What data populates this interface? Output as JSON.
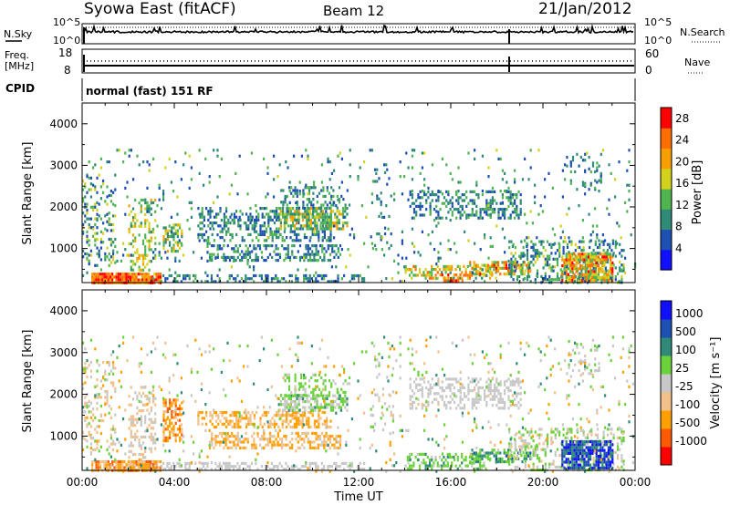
{
  "header": {
    "title": "Syowa East (fitACF)",
    "beam": "Beam 12",
    "date": "21/Jan/2012"
  },
  "noise_panel": {
    "left_label": "N.Sky",
    "right_label": "N.Search",
    "left_ticks": [
      "10^5",
      "10^0"
    ],
    "right_ticks": [
      "10^5",
      "10^0"
    ]
  },
  "freq_panel": {
    "left_label_1": "Freq.",
    "left_label_2": "[MHz]",
    "right_label": "Nave",
    "left_ticks": [
      "18",
      "8"
    ],
    "right_ticks": [
      "60",
      "0"
    ]
  },
  "cpid": {
    "label": "CPID",
    "value": "normal (fast) 151 RF"
  },
  "chart_data": [
    {
      "type": "heatmap",
      "name": "power",
      "ylabel": "Slant Range [km]",
      "ylim": [
        180,
        4500
      ],
      "yticks": [
        "1000",
        "2000",
        "3000",
        "4000"
      ],
      "xlim": [
        "00:00",
        "24:00"
      ],
      "colorbar_label": "Power [dB]",
      "colorbar_ticks": [
        "4",
        "8",
        "12",
        "16",
        "20",
        "24",
        "28"
      ],
      "colorbar_range": [
        0,
        30
      ],
      "colors": [
        "#1010ff",
        "#1e50b4",
        "#2f8a78",
        "#50b450",
        "#d2d21e",
        "#f5a000",
        "#ff6e00",
        "#ff0000"
      ],
      "echo_regions": [
        {
          "t": [
            0.4,
            3.4
          ],
          "r": [
            180,
            420
          ],
          "v": [
            18,
            30
          ],
          "d": 0.9
        },
        {
          "t": [
            3.4,
            12.2
          ],
          "r": [
            180,
            380
          ],
          "v": [
            4,
            14
          ],
          "d": 0.45
        },
        {
          "t": [
            2.0,
            3.2
          ],
          "r": [
            500,
            2200
          ],
          "v": [
            10,
            22
          ],
          "d": 0.35
        },
        {
          "t": [
            0.0,
            1.4
          ],
          "r": [
            600,
            2800
          ],
          "v": [
            4,
            18
          ],
          "d": 0.25
        },
        {
          "t": [
            3.5,
            4.3
          ],
          "r": [
            900,
            1600
          ],
          "v": [
            8,
            20
          ],
          "d": 0.55
        },
        {
          "t": [
            5.5,
            11.2
          ],
          "r": [
            700,
            1100
          ],
          "v": [
            4,
            14
          ],
          "d": 0.45
        },
        {
          "t": [
            5.0,
            10.8
          ],
          "r": [
            1200,
            2000
          ],
          "v": [
            4,
            14
          ],
          "d": 0.35
        },
        {
          "t": [
            8.5,
            11.5
          ],
          "r": [
            1500,
            2000
          ],
          "v": [
            8,
            22
          ],
          "d": 0.6
        },
        {
          "t": [
            8.6,
            11.6
          ],
          "r": [
            2000,
            2500
          ],
          "v": [
            4,
            14
          ],
          "d": 0.3
        },
        {
          "t": [
            12.5,
            13.5
          ],
          "r": [
            1000,
            3000
          ],
          "v": [
            4,
            12
          ],
          "d": 0.15
        },
        {
          "t": [
            14.2,
            19.0
          ],
          "r": [
            1700,
            2400
          ],
          "v": [
            4,
            14
          ],
          "d": 0.4
        },
        {
          "t": [
            14.0,
            18.0
          ],
          "r": [
            250,
            600
          ],
          "v": [
            10,
            26
          ],
          "d": 0.45
        },
        {
          "t": [
            15.5,
            16.5
          ],
          "r": [
            200,
            400
          ],
          "v": [
            18,
            28
          ],
          "d": 0.6
        },
        {
          "t": [
            16.8,
            19.5
          ],
          "r": [
            400,
            700
          ],
          "v": [
            12,
            28
          ],
          "d": 0.6
        },
        {
          "t": [
            18.5,
            23.5
          ],
          "r": [
            180,
            1200
          ],
          "v": [
            4,
            16
          ],
          "d": 0.35
        },
        {
          "t": [
            20.8,
            23.0
          ],
          "r": [
            250,
            900
          ],
          "v": [
            12,
            28
          ],
          "d": 0.8
        },
        {
          "t": [
            21.0,
            22.5
          ],
          "r": [
            2400,
            3300
          ],
          "v": [
            4,
            12
          ],
          "d": 0.15
        },
        {
          "t": [
            0.0,
            24.0
          ],
          "r": [
            180,
            3400
          ],
          "v": [
            4,
            16
          ],
          "d": 0.04
        }
      ]
    },
    {
      "type": "heatmap",
      "name": "velocity",
      "ylabel": "Slant Range [km]",
      "ylim": [
        180,
        4500
      ],
      "yticks": [
        "1000",
        "2000",
        "3000",
        "4000"
      ],
      "xlabel": "Time UT",
      "xticks": [
        "00:00",
        "04:00",
        "08:00",
        "12:00",
        "16:00",
        "20:00",
        "00:00"
      ],
      "colorbar_label": "Velocity  [m s⁻¹]",
      "colorbar_ticks": [
        "1000",
        "500",
        "100",
        "25",
        "-25",
        "-100",
        "-500",
        "-1000"
      ],
      "colorbar_range": [
        -1000,
        1000
      ],
      "colors": [
        "#ff0000",
        "#ff5a00",
        "#ffa000",
        "#f2c08a",
        "#c8c8c8",
        "#6cd23c",
        "#2f8a78",
        "#1e50b4",
        "#1010ff"
      ],
      "echo_regions": [
        {
          "t": [
            0.4,
            3.4
          ],
          "r": [
            180,
            420
          ],
          "v": [
            -700,
            -200
          ],
          "d": 0.9
        },
        {
          "t": [
            3.4,
            12.2
          ],
          "r": [
            180,
            380
          ],
          "v": [
            -100,
            50
          ],
          "d": 0.45
        },
        {
          "t": [
            2.0,
            3.2
          ],
          "r": [
            500,
            2200
          ],
          "v": [
            -300,
            100
          ],
          "d": 0.35
        },
        {
          "t": [
            0.0,
            1.4
          ],
          "r": [
            600,
            2800
          ],
          "v": [
            -400,
            200
          ],
          "d": 0.25
        },
        {
          "t": [
            3.5,
            4.3
          ],
          "r": [
            900,
            1900
          ],
          "v": [
            -700,
            -200
          ],
          "d": 0.55
        },
        {
          "t": [
            5.5,
            11.2
          ],
          "r": [
            700,
            1100
          ],
          "v": [
            -500,
            -80
          ],
          "d": 0.45
        },
        {
          "t": [
            5.0,
            10.8
          ],
          "r": [
            1200,
            1600
          ],
          "v": [
            -500,
            -150
          ],
          "d": 0.5
        },
        {
          "t": [
            8.5,
            11.5
          ],
          "r": [
            1600,
            2000
          ],
          "v": [
            -50,
            400
          ],
          "d": 0.6
        },
        {
          "t": [
            8.6,
            11.6
          ],
          "r": [
            2000,
            2500
          ],
          "v": [
            50,
            300
          ],
          "d": 0.3
        },
        {
          "t": [
            12.5,
            13.5
          ],
          "r": [
            1000,
            3000
          ],
          "v": [
            -200,
            200
          ],
          "d": 0.15
        },
        {
          "t": [
            14.2,
            19.0
          ],
          "r": [
            1700,
            2400
          ],
          "v": [
            -60,
            60
          ],
          "d": 0.4
        },
        {
          "t": [
            14.0,
            18.0
          ],
          "r": [
            250,
            600
          ],
          "v": [
            50,
            400
          ],
          "d": 0.45
        },
        {
          "t": [
            16.8,
            19.5
          ],
          "r": [
            400,
            700
          ],
          "v": [
            100,
            600
          ],
          "d": 0.55
        },
        {
          "t": [
            18.5,
            23.5
          ],
          "r": [
            180,
            1200
          ],
          "v": [
            -200,
            300
          ],
          "d": 0.35
        },
        {
          "t": [
            20.8,
            23.0
          ],
          "r": [
            250,
            900
          ],
          "v": [
            400,
            1000
          ],
          "d": 0.8
        },
        {
          "t": [
            21.0,
            22.5
          ],
          "r": [
            2400,
            3300
          ],
          "v": [
            -100,
            200
          ],
          "d": 0.15
        },
        {
          "t": [
            0.0,
            24.0
          ],
          "r": [
            180,
            3400
          ],
          "v": [
            -500,
            500
          ],
          "d": 0.04
        }
      ]
    }
  ]
}
